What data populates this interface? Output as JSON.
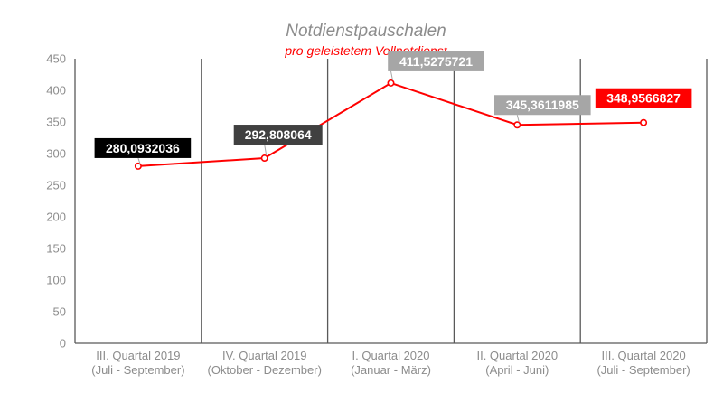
{
  "chart_data": {
    "type": "line",
    "title": "Notdienstpauschalen",
    "subtitle": "pro geleistetem Vollnotdienst",
    "categories": [
      [
        "III. Quartal 2019",
        "(Juli - September)"
      ],
      [
        "IV. Quartal 2019",
        "(Oktober - Dezember)"
      ],
      [
        "I. Quartal 2020",
        "(Januar - März)"
      ],
      [
        "II. Quartal 2020",
        "(April - Juni)"
      ],
      [
        "III. Quartal 2020",
        "(Juli - September)"
      ]
    ],
    "values": [
      280.0932036,
      292.808064,
      411.5275721,
      345.3611985,
      348.9566827
    ],
    "data_labels": [
      "280,0932036",
      "292,808064",
      "411,5275721",
      "345,3611985",
      "348,9566827"
    ],
    "label_colors": [
      "#000000",
      "#404040",
      "#a6a6a6",
      "#a6a6a6",
      "#ff0000"
    ],
    "line_color": "#ff0000",
    "yticks": [
      "0",
      "50",
      "100",
      "150",
      "200",
      "250",
      "300",
      "350",
      "400",
      "450"
    ],
    "ylim": [
      0,
      450
    ],
    "grid": "vertical",
    "xlabel": "",
    "ylabel": ""
  }
}
